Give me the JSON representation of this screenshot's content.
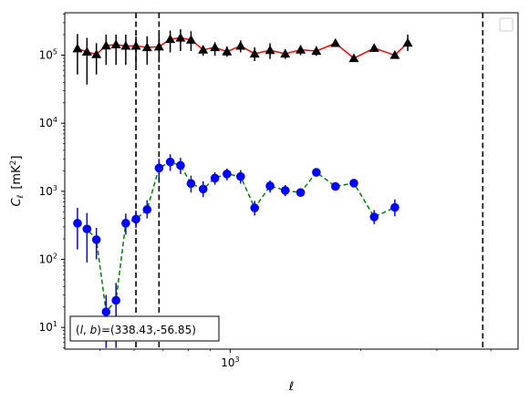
{
  "chart_data": {
    "type": "scatter",
    "xscale": "log",
    "yscale": "log",
    "xlabel": "ℓ",
    "ylabel": "C",
    "ylabel_sub": "ℓ",
    "ylabel_unit": "[mK",
    "ylabel_unit_sup": "2",
    "ylabel_unit_close": "]",
    "xlim": [
      415,
      4620
    ],
    "ylim": [
      4.8,
      420000
    ],
    "x_ticks": [
      {
        "value": 1000,
        "base": "10",
        "exp": "3"
      }
    ],
    "y_ticks": [
      {
        "value": 10,
        "base": "10",
        "exp": "1"
      },
      {
        "value": 100,
        "base": "10",
        "exp": "2"
      },
      {
        "value": 1000,
        "base": "10",
        "exp": "3"
      },
      {
        "value": 10000,
        "base": "10",
        "exp": "4"
      },
      {
        "value": 100000,
        "base": "10",
        "exp": "5"
      }
    ],
    "legend": {
      "placement": "top-right",
      "entries": []
    },
    "annotation": "(l, b)=(338.43,-56.85)",
    "annotation_parts": {
      "open": "(",
      "l": "l",
      "sep": ", ",
      "b": "b",
      "rest": ")=(338.43,-56.85)"
    },
    "vlines": [
      {
        "x": 606,
        "style": "dashed",
        "color": "#000000"
      },
      {
        "x": 685,
        "style": "dashed",
        "color": "#000000"
      },
      {
        "x": 3830,
        "style": "dashed",
        "color": "#000000"
      }
    ],
    "series": [
      {
        "marker": "triangle",
        "line_color": "#ff0000",
        "marker_color": "#000000",
        "line_style": "solid",
        "points": [
          {
            "x": 444,
            "y": 125000,
            "lo": 52000,
            "hi": 205000
          },
          {
            "x": 467,
            "y": 112000,
            "lo": 37000,
            "hi": 180000
          },
          {
            "x": 491,
            "y": 103000,
            "lo": 52000,
            "hi": 150000
          },
          {
            "x": 517,
            "y": 138000,
            "lo": 72000,
            "hi": 200000
          },
          {
            "x": 545,
            "y": 143000,
            "lo": 72000,
            "hi": 200000
          },
          {
            "x": 574,
            "y": 137000,
            "lo": 72000,
            "hi": 200000
          },
          {
            "x": 606,
            "y": 137000,
            "lo": 72000,
            "hi": 190000
          },
          {
            "x": 643,
            "y": 130000,
            "lo": 72000,
            "hi": 190000
          },
          {
            "x": 685,
            "y": 133000,
            "lo": 78000,
            "hi": 200000
          },
          {
            "x": 727,
            "y": 172000,
            "lo": 110000,
            "hi": 230000
          },
          {
            "x": 768,
            "y": 180000,
            "lo": 115000,
            "hi": 240000
          },
          {
            "x": 812,
            "y": 168000,
            "lo": 115000,
            "hi": 225000
          },
          {
            "x": 866,
            "y": 120000,
            "lo": 98000,
            "hi": 135000
          },
          {
            "x": 922,
            "y": 130000,
            "lo": 98000,
            "hi": 155000
          },
          {
            "x": 983,
            "y": 113000,
            "lo": 95000,
            "hi": 135000
          },
          {
            "x": 1057,
            "y": 137000,
            "lo": 110000,
            "hi": 165000
          },
          {
            "x": 1139,
            "y": 105000,
            "lo": 82000,
            "hi": 130000
          },
          {
            "x": 1236,
            "y": 118000,
            "lo": 88000,
            "hi": 150000
          },
          {
            "x": 1340,
            "y": 105000,
            "lo": 88000,
            "hi": 122000
          },
          {
            "x": 1454,
            "y": 120000,
            "lo": 100000,
            "hi": 140000
          },
          {
            "x": 1581,
            "y": 115000,
            "lo": 98000,
            "hi": 135000
          },
          {
            "x": 1750,
            "y": 150000,
            "lo": 132000,
            "hi": 170000
          },
          {
            "x": 1930,
            "y": 90000,
            "lo": 80000,
            "hi": 100000
          },
          {
            "x": 2150,
            "y": 127000,
            "lo": 112000,
            "hi": 142000
          },
          {
            "x": 2400,
            "y": 100000,
            "lo": 90000,
            "hi": 112000
          },
          {
            "x": 2570,
            "y": 152000,
            "lo": 115000,
            "hi": 200000
          }
        ]
      },
      {
        "marker": "circle",
        "line_color": "#008000",
        "marker_color": "#0000ff",
        "line_style": "dashed",
        "points": [
          {
            "x": 444,
            "y": 340,
            "lo": 140,
            "hi": 570
          },
          {
            "x": 467,
            "y": 280,
            "lo": 90,
            "hi": 480
          },
          {
            "x": 491,
            "y": 195,
            "lo": 100,
            "hi": 290
          },
          {
            "x": 517,
            "y": 17,
            "lo": 5,
            "hi": 30
          },
          {
            "x": 545,
            "y": 25,
            "lo": 5,
            "hi": 45
          },
          {
            "x": 574,
            "y": 340,
            "lo": 230,
            "hi": 470
          },
          {
            "x": 606,
            "y": 390,
            "lo": 290,
            "hi": 520
          },
          {
            "x": 643,
            "y": 540,
            "lo": 400,
            "hi": 740
          },
          {
            "x": 685,
            "y": 2200,
            "lo": 1600,
            "hi": 3000
          },
          {
            "x": 727,
            "y": 2700,
            "lo": 2000,
            "hi": 3500
          },
          {
            "x": 768,
            "y": 2400,
            "lo": 1800,
            "hi": 3100
          },
          {
            "x": 812,
            "y": 1300,
            "lo": 960,
            "hi": 1700
          },
          {
            "x": 866,
            "y": 1080,
            "lo": 820,
            "hi": 1400
          },
          {
            "x": 922,
            "y": 1560,
            "lo": 1250,
            "hi": 1900
          },
          {
            "x": 983,
            "y": 1800,
            "lo": 1450,
            "hi": 2150
          },
          {
            "x": 1057,
            "y": 1650,
            "lo": 1300,
            "hi": 2050
          },
          {
            "x": 1139,
            "y": 570,
            "lo": 440,
            "hi": 720
          },
          {
            "x": 1236,
            "y": 1200,
            "lo": 960,
            "hi": 1450
          },
          {
            "x": 1340,
            "y": 1030,
            "lo": 850,
            "hi": 1240
          },
          {
            "x": 1454,
            "y": 960,
            "lo": 840,
            "hi": 1100
          },
          {
            "x": 1581,
            "y": 1900,
            "lo": 1700,
            "hi": 2100
          },
          {
            "x": 1750,
            "y": 1180,
            "lo": 1050,
            "hi": 1320
          },
          {
            "x": 1930,
            "y": 1320,
            "lo": 1160,
            "hi": 1500
          },
          {
            "x": 2150,
            "y": 420,
            "lo": 330,
            "hi": 530
          },
          {
            "x": 2400,
            "y": 580,
            "lo": 430,
            "hi": 760
          }
        ]
      }
    ]
  }
}
